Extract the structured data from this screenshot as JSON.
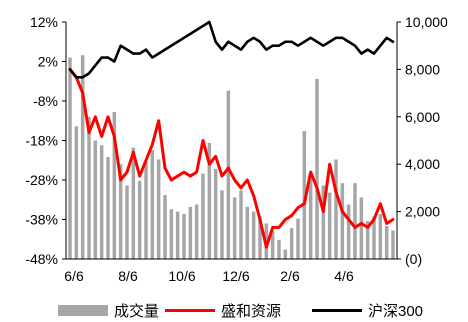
{
  "chart_data": {
    "type": "bar+line",
    "title": "",
    "x_ticks": [
      "6/6",
      "8/6",
      "10/6",
      "12/6",
      "2/6",
      "4/6"
    ],
    "y_left": {
      "ticks": [
        "12%",
        "2%",
        "-8%",
        "-18%",
        "-28%",
        "-38%",
        "-48%"
      ],
      "ylim": [
        -48,
        12
      ],
      "unit": "%"
    },
    "y_right": {
      "ticks": [
        "10,000",
        "8,000",
        "6,000",
        "4,000",
        "2,000",
        "(0)"
      ],
      "ylim": [
        0,
        10000
      ]
    },
    "series": [
      {
        "name": "成交量",
        "type": "bar",
        "axis": "right",
        "color": "#a6a6a6",
        "x": [
          "6/6",
          "6/13",
          "6/20",
          "6/27",
          "7/4",
          "7/11",
          "7/18",
          "7/25",
          "8/1",
          "8/8",
          "8/15",
          "8/22",
          "8/29",
          "9/5",
          "9/12",
          "9/19",
          "9/26",
          "10/3",
          "10/10",
          "10/17",
          "10/24",
          "10/31",
          "11/7",
          "11/14",
          "11/21",
          "11/28",
          "12/5",
          "12/12",
          "12/19",
          "12/26",
          "1/2",
          "1/9",
          "1/16",
          "1/23",
          "1/30",
          "2/6",
          "2/13",
          "2/20",
          "2/27",
          "3/6",
          "3/13",
          "3/20",
          "3/27",
          "4/3",
          "4/10",
          "4/17",
          "4/24",
          "5/1",
          "5/8",
          "5/15",
          "5/22",
          "5/29"
        ],
        "values": [
          8500,
          5600,
          8600,
          6000,
          5000,
          4800,
          4300,
          6200,
          4000,
          3100,
          4700,
          3300,
          4100,
          4600,
          4200,
          2700,
          2100,
          2000,
          1900,
          2200,
          2300,
          3600,
          4900,
          3800,
          2900,
          7100,
          2600,
          2900,
          2200,
          2000,
          1800,
          1500,
          1200,
          800,
          400,
          1300,
          1700,
          5400,
          3600,
          7600,
          3100,
          2800,
          4200,
          3200,
          2300,
          3200,
          2600,
          1600,
          1800,
          1900,
          1400,
          1200
        ]
      },
      {
        "name": "盛和资源",
        "type": "line",
        "axis": "left",
        "color": "#ff0000",
        "x": [
          "6/6",
          "6/13",
          "6/20",
          "6/27",
          "7/4",
          "7/11",
          "7/18",
          "7/25",
          "8/1",
          "8/8",
          "8/15",
          "8/22",
          "8/29",
          "9/5",
          "9/12",
          "9/19",
          "9/26",
          "10/3",
          "10/10",
          "10/17",
          "10/24",
          "10/31",
          "11/7",
          "11/14",
          "11/21",
          "11/28",
          "12/5",
          "12/12",
          "12/19",
          "12/26",
          "1/2",
          "1/9",
          "1/16",
          "1/23",
          "1/30",
          "2/6",
          "2/13",
          "2/20",
          "2/27",
          "3/6",
          "3/13",
          "3/20",
          "3/27",
          "4/3",
          "4/10",
          "4/17",
          "4/24",
          "5/1",
          "5/8",
          "5/15",
          "5/22",
          "5/29"
        ],
        "values": [
          0,
          -2,
          -6,
          -16,
          -12,
          -17,
          -12,
          -17,
          -28,
          -26,
          -21,
          -27,
          -23,
          -19,
          -13,
          -25,
          -28,
          -27,
          -26,
          -27,
          -26,
          -18,
          -24,
          -22,
          -27,
          -25,
          -28,
          -30,
          -28,
          -32,
          -38,
          -45,
          -40,
          -40,
          -38,
          -37,
          -35,
          -34,
          -26,
          -30,
          -36,
          -24,
          -31,
          -36,
          -38,
          -40,
          -39,
          -40,
          -38,
          -34,
          -39,
          -38
        ]
      },
      {
        "name": "沪深300",
        "type": "line",
        "axis": "left",
        "color": "#000000",
        "x": [
          "6/6",
          "6/13",
          "6/20",
          "6/27",
          "7/4",
          "7/11",
          "7/18",
          "7/25",
          "8/1",
          "8/8",
          "8/15",
          "8/22",
          "8/29",
          "9/5",
          "9/12",
          "9/19",
          "9/26",
          "10/3",
          "10/10",
          "10/17",
          "10/24",
          "10/31",
          "11/7",
          "11/14",
          "11/21",
          "11/28",
          "12/5",
          "12/12",
          "12/19",
          "12/26",
          "1/2",
          "1/9",
          "1/16",
          "1/23",
          "1/30",
          "2/6",
          "2/13",
          "2/20",
          "2/27",
          "3/6",
          "3/13",
          "3/20",
          "3/27",
          "4/3",
          "4/10",
          "4/17",
          "4/24",
          "5/1",
          "5/8",
          "5/15",
          "5/22",
          "5/29"
        ],
        "values": [
          0,
          -2,
          -2,
          -1,
          1,
          3,
          3,
          2,
          6,
          5,
          4,
          4,
          5,
          3,
          4,
          5,
          6,
          7,
          8,
          9,
          10,
          11,
          12,
          7,
          5,
          7,
          6,
          5,
          7,
          8,
          7,
          5,
          6,
          6,
          7,
          7,
          6,
          7,
          8,
          7,
          6,
          7,
          8,
          8,
          7,
          6,
          4,
          5,
          4,
          6,
          8,
          7
        ]
      }
    ],
    "legend": {
      "placement": "bottom",
      "entries": [
        "成交量",
        "盛和资源",
        "沪深300"
      ]
    }
  }
}
